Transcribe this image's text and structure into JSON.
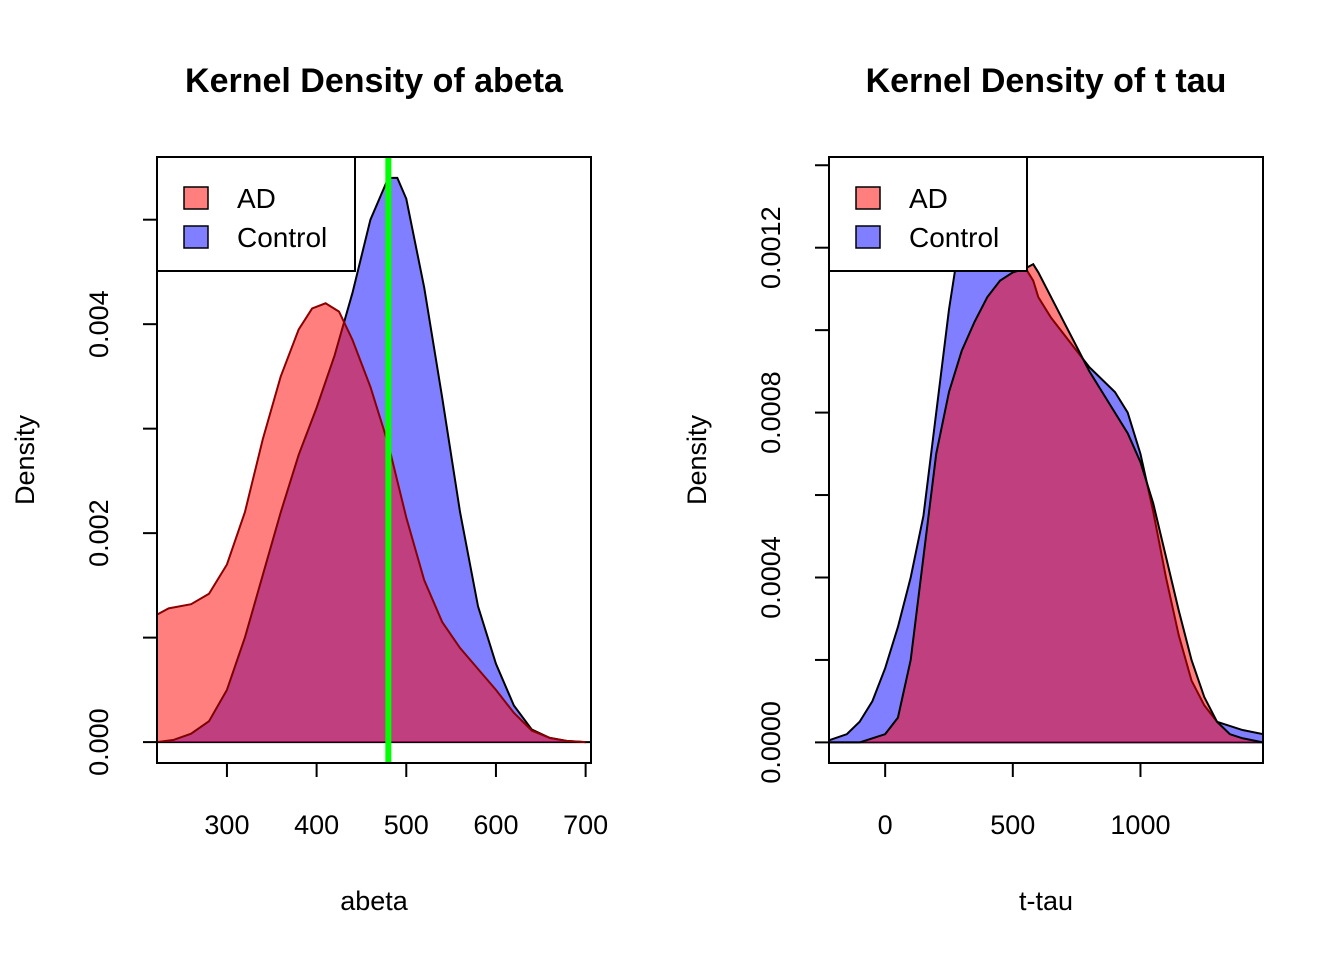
{
  "colors": {
    "ad_fill": "rgba(255,0,0,0.5)",
    "control_fill": "rgba(0,0,255,0.5)",
    "stroke": "#000000",
    "dark_red_stroke": "#8b0000",
    "vline": "#00ff00"
  },
  "chart_data": [
    {
      "type": "area",
      "title": "Kernel Density of abeta",
      "xlabel": "abeta",
      "ylabel": "Density",
      "xlim": [
        222,
        706
      ],
      "ylim": [
        -0.0002,
        0.0056
      ],
      "xticks": [
        300,
        400,
        500,
        600,
        700
      ],
      "yticks": [
        0.0,
        0.001,
        0.002,
        0.003,
        0.004,
        0.005
      ],
      "ytick_labels": [
        "0.000",
        "",
        "0.002",
        "",
        "0.004",
        ""
      ],
      "legend": {
        "position": "top-left",
        "entries": [
          "AD",
          "Control"
        ]
      },
      "vline": {
        "x": 480
      },
      "series": [
        {
          "name": "AD",
          "x": [
            222,
            235,
            260,
            280,
            300,
            320,
            340,
            360,
            380,
            395,
            410,
            425,
            440,
            460,
            480,
            500,
            520,
            540,
            560,
            580,
            600,
            620,
            640,
            660,
            680,
            700
          ],
          "y": [
            0.00122,
            0.00128,
            0.00132,
            0.00142,
            0.0017,
            0.0022,
            0.0029,
            0.0035,
            0.00395,
            0.00415,
            0.0042,
            0.00412,
            0.00385,
            0.0034,
            0.00285,
            0.00215,
            0.00155,
            0.00115,
            0.0009,
            0.0007,
            0.0005,
            0.00028,
            0.00011,
            4e-05,
            1e-05,
            0.0
          ]
        },
        {
          "name": "Control",
          "x": [
            222,
            240,
            260,
            280,
            300,
            320,
            340,
            360,
            380,
            400,
            420,
            440,
            460,
            480,
            490,
            500,
            520,
            540,
            560,
            580,
            600,
            620,
            640,
            660,
            680,
            700
          ],
          "y": [
            0.0,
            2e-05,
            8e-05,
            0.0002,
            0.0005,
            0.001,
            0.0016,
            0.0022,
            0.00275,
            0.0032,
            0.0037,
            0.0043,
            0.005,
            0.0054,
            0.0054,
            0.0052,
            0.00435,
            0.0033,
            0.0022,
            0.0013,
            0.00075,
            0.00035,
            0.00012,
            4e-05,
            1e-05,
            0.0
          ]
        }
      ]
    },
    {
      "type": "area",
      "title": "Kernel Density of t tau",
      "xlabel": "t-tau",
      "ylabel": "Density",
      "xlim": [
        -220,
        1480
      ],
      "ylim": [
        -5e-05,
        0.00142
      ],
      "xticks": [
        0,
        500,
        1000
      ],
      "yticks": [
        0.0,
        0.0002,
        0.0004,
        0.0006,
        0.0008,
        0.001,
        0.0012,
        0.0014
      ],
      "ytick_labels": [
        "0.0000",
        "",
        "0.0004",
        "",
        "0.0008",
        "",
        "0.0012",
        ""
      ],
      "legend": {
        "position": "top-left",
        "entries": [
          "AD",
          "Control"
        ]
      },
      "series": [
        {
          "name": "AD",
          "x": [
            -220,
            -150,
            -100,
            -50,
            0,
            50,
            100,
            150,
            200,
            250,
            300,
            350,
            400,
            450,
            500,
            550,
            580,
            600,
            650,
            700,
            750,
            800,
            850,
            900,
            950,
            1000,
            1050,
            1100,
            1150,
            1200,
            1250,
            1300,
            1350,
            1400,
            1480
          ],
          "y": [
            0.0,
            0.0,
            0.0,
            1e-05,
            2e-05,
            6e-05,
            0.0002,
            0.00045,
            0.0007,
            0.00085,
            0.00095,
            0.00102,
            0.00108,
            0.00112,
            0.00114,
            0.00115,
            0.00116,
            0.00114,
            0.00108,
            0.00102,
            0.00096,
            0.0009,
            0.00085,
            0.0008,
            0.00075,
            0.00068,
            0.00058,
            0.00045,
            0.00032,
            0.0002,
            0.00011,
            5e-05,
            2e-05,
            1e-05,
            0.0
          ]
        },
        {
          "name": "Control",
          "x": [
            -220,
            -150,
            -100,
            -50,
            0,
            50,
            100,
            150,
            200,
            250,
            300,
            350,
            400,
            450,
            500,
            550,
            580,
            600,
            650,
            700,
            750,
            800,
            850,
            900,
            950,
            1000,
            1050,
            1100,
            1150,
            1200,
            1250,
            1300,
            1350,
            1400,
            1480
          ],
          "y": [
            5e-06,
            2e-05,
            5e-05,
            0.0001,
            0.00018,
            0.00028,
            0.0004,
            0.00055,
            0.0008,
            0.00105,
            0.00125,
            0.0014,
            0.00145,
            0.0013,
            0.0012,
            0.00115,
            0.00112,
            0.00108,
            0.00103,
            0.00099,
            0.00095,
            0.00091,
            0.00088,
            0.00085,
            0.0008,
            0.0007,
            0.00056,
            0.0004,
            0.00026,
            0.00015,
            9e-05,
            5e-05,
            4e-05,
            3e-05,
            2e-05
          ]
        }
      ]
    }
  ]
}
